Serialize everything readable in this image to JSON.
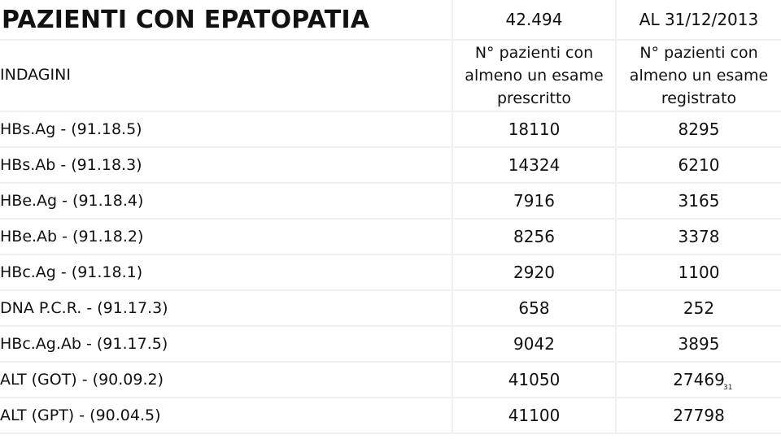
{
  "title": "PAZIENTI CON EPATOPATIA",
  "total": "42.494",
  "date_label": "AL 31/12/2013",
  "header": {
    "label": "INDAGINI",
    "col_prescribed": "N° pazienti con almeno un esame prescritto",
    "col_registered": "N° pazienti con almeno un esame registrato"
  },
  "rows": [
    {
      "test": "HBs.Ag - (91.18.5)",
      "prescribed": "18110",
      "registered": "8295"
    },
    {
      "test": "HBs.Ab - (91.18.3)",
      "prescribed": "14324",
      "registered": "6210"
    },
    {
      "test": "HBe.Ag - (91.18.4)",
      "prescribed": "7916",
      "registered": "3165"
    },
    {
      "test": "HBe.Ab - (91.18.2)",
      "prescribed": "8256",
      "registered": "3378"
    },
    {
      "test": "HBc.Ag - (91.18.1)",
      "prescribed": "2920",
      "registered": "1100"
    },
    {
      "test": "DNA P.C.R. - (91.17.3)",
      "prescribed": "658",
      "registered": "252"
    },
    {
      "test": "HBc.Ag.Ab - (91.17.5)",
      "prescribed": "9042",
      "registered": "3895"
    },
    {
      "test": "ALT (GOT) - (90.09.2)",
      "prescribed": "41050",
      "registered": "27469"
    },
    {
      "test": "ALT (GPT) - (90.04.5)",
      "prescribed": "41100",
      "registered": "27798"
    }
  ],
  "page_number": "31"
}
